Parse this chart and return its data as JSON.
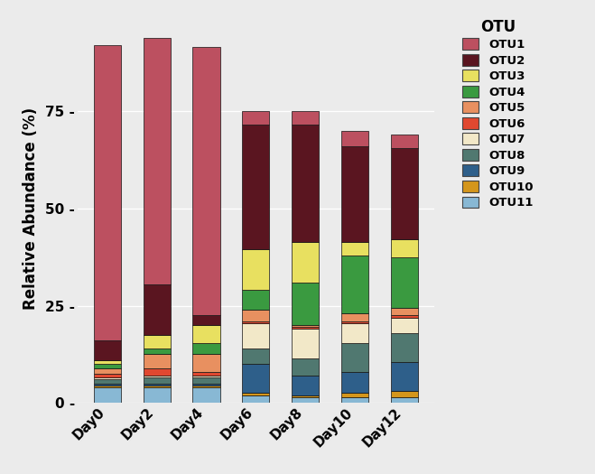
{
  "categories": [
    "Day0",
    "Day2",
    "Day4",
    "Day6",
    "Day8",
    "Day10",
    "Day12"
  ],
  "otu_labels": [
    "OTU1",
    "OTU2",
    "OTU3",
    "OTU4",
    "OTU5",
    "OTU6",
    "OTU7",
    "OTU8",
    "OTU9",
    "OTU10",
    "OTU11"
  ],
  "colors": [
    "#bc5060",
    "#5a1520",
    "#e8e060",
    "#3a9a40",
    "#e89060",
    "#e04830",
    "#f2e8c8",
    "#507870",
    "#2e5f8a",
    "#d4961c",
    "#88b8d4"
  ],
  "data": [
    [
      76.0,
      63.5,
      69.0,
      3.5,
      3.5,
      4.0,
      3.5
    ],
    [
      5.0,
      13.0,
      2.5,
      32.0,
      30.0,
      24.5,
      23.5
    ],
    [
      1.0,
      3.5,
      4.5,
      10.5,
      10.5,
      3.5,
      4.5
    ],
    [
      1.0,
      1.5,
      3.0,
      5.0,
      11.0,
      15.0,
      13.0
    ],
    [
      1.5,
      3.5,
      4.5,
      3.0,
      0.5,
      2.0,
      2.0
    ],
    [
      1.0,
      2.0,
      1.0,
      0.5,
      0.5,
      0.5,
      0.5
    ],
    [
      0.5,
      0.5,
      0.5,
      6.5,
      7.5,
      5.0,
      4.0
    ],
    [
      1.0,
      1.5,
      1.5,
      4.0,
      4.5,
      7.5,
      7.5
    ],
    [
      0.5,
      0.5,
      0.5,
      7.5,
      5.0,
      5.5,
      7.5
    ],
    [
      0.5,
      0.5,
      0.5,
      0.5,
      0.5,
      1.0,
      1.5
    ],
    [
      4.0,
      4.0,
      4.0,
      2.0,
      1.5,
      1.5,
      1.5
    ]
  ],
  "ylabel": "Relative Abundance (%)",
  "legend_title": "OTU",
  "ylim": [
    0,
    100
  ],
  "yticks": [
    0,
    25,
    50,
    75
  ],
  "background_color": "#ebebeb",
  "bar_edge_color": "#111111",
  "bar_edge_width": 0.5,
  "bar_width": 0.55,
  "grid_color": "#ffffff",
  "grid_linewidth": 0.9
}
